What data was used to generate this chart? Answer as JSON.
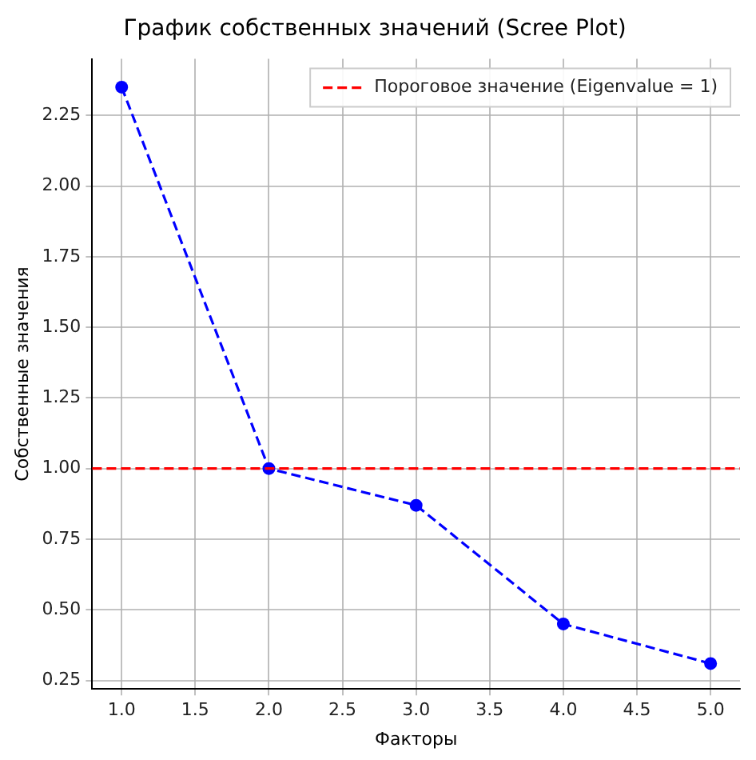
{
  "chart_data": {
    "type": "line",
    "title": "График собственных значений (Scree Plot)",
    "xlabel": "Факторы",
    "ylabel": "Собственные значения",
    "x": [
      1,
      2,
      3,
      4,
      5
    ],
    "series": [
      {
        "color": "#0000ff",
        "values": [
          2.35,
          1.0,
          0.87,
          0.45,
          0.31
        ]
      }
    ],
    "marker": "circle",
    "line_style": "dashed",
    "grid": true,
    "legend": "top right",
    "xlim": [
      0.8,
      5.2
    ],
    "xticks": [
      {
        "value": 1,
        "label": "1.0"
      },
      {
        "value": 1.5,
        "label": "1.5"
      },
      {
        "value": 2,
        "label": "2.0"
      },
      {
        "value": 2.5,
        "label": "2.5"
      },
      {
        "value": 3,
        "label": "3.0"
      },
      {
        "value": 3.5,
        "label": "3.5"
      },
      {
        "value": 4,
        "label": "4.0"
      },
      {
        "value": 4.5,
        "label": "4.5"
      },
      {
        "value": 5,
        "label": "5.0"
      }
    ],
    "ylim": [
      0.22,
      2.45
    ],
    "yticks": [
      {
        "value": 0.25,
        "label": "0.25"
      },
      {
        "value": 0.5,
        "label": "0.50"
      },
      {
        "value": 0.75,
        "label": "0.75"
      },
      {
        "value": 1,
        "label": "1.00"
      },
      {
        "value": 1.25,
        "label": "1.25"
      },
      {
        "value": 1.5,
        "label": "1.50"
      },
      {
        "value": 1.75,
        "label": "1.75"
      },
      {
        "value": 2,
        "label": "2.00"
      },
      {
        "value": 2.25,
        "label": "2.25"
      }
    ],
    "ref_lines": [
      {
        "axis": "y",
        "value": 1,
        "label": "Пороговое значение (Eigenvalue = 1)",
        "color": "#ff0000",
        "line_style": "dashed"
      }
    ]
  }
}
